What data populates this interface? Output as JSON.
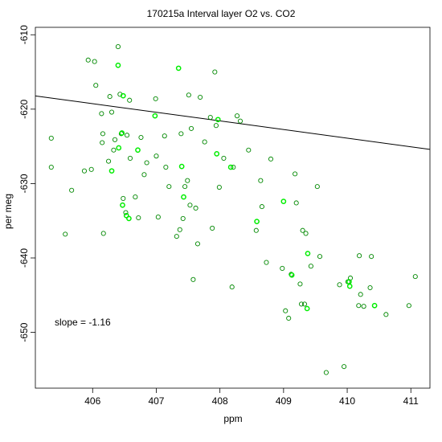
{
  "chart_data": {
    "type": "scatter",
    "title": "170215a   Interval layer O2 vs. CO2",
    "xlabel": "ppm",
    "ylabel": "per meg",
    "xlim": [
      405.1,
      411.3
    ],
    "ylim": [
      -657.5,
      -609.0
    ],
    "xticks": [
      406,
      407,
      408,
      409,
      410,
      411
    ],
    "yticks": [
      -650,
      -640,
      -630,
      -620,
      -610
    ],
    "grid": false,
    "annotation": "slope =  -1.16",
    "point_color_dark": "#008800",
    "point_color_bright": "#00ee00",
    "fit_line": {
      "slope": -1.16,
      "intercept": -148.3,
      "color": "#000000"
    },
    "series": [
      {
        "x": [
          405.35,
          405.35,
          405.57,
          405.67,
          405.87,
          405.93,
          405.98,
          406.03,
          406.05,
          406.14,
          406.15,
          406.16,
          406.17,
          406.25,
          406.27,
          406.3,
          406.33,
          406.35,
          406.4,
          406.43,
          406.45,
          406.48,
          406.52,
          406.54,
          406.58,
          406.59,
          406.67,
          406.72,
          406.76,
          406.81,
          406.85,
          406.99,
          407.0,
          407.03,
          407.13,
          407.15,
          407.2,
          407.32,
          407.35,
          407.37,
          407.39,
          407.42,
          407.45,
          407.49,
          407.51,
          407.53,
          407.55,
          407.58,
          407.62,
          407.65,
          407.69,
          407.76,
          407.85,
          407.88,
          407.92,
          407.94,
          407.99,
          408.06,
          408.19,
          408.21,
          408.27,
          408.32,
          408.45,
          408.57,
          408.64,
          408.66,
          408.73,
          408.8,
          408.98,
          409.03,
          409.08,
          409.12,
          409.18,
          409.2,
          409.26,
          409.28,
          409.3,
          409.33,
          409.35,
          409.43,
          409.53,
          409.57,
          409.67,
          409.88,
          409.95,
          410.01,
          410.05,
          410.18,
          410.19,
          410.21,
          410.26,
          410.36,
          410.38,
          410.61,
          410.97,
          411.07,
          406.4,
          406.3,
          406.48,
          406.46,
          406.47,
          406.41,
          406.71,
          406.53,
          406.57,
          406.98,
          407.43,
          407.4,
          407.97,
          407.95,
          408.17,
          408.58,
          409.0,
          409.13,
          409.37,
          409.38,
          410.04,
          410.03,
          410.43
        ],
        "y": [
          -623.9,
          -627.8,
          -636.8,
          -630.9,
          -628.3,
          -613.4,
          -628.1,
          -613.6,
          -616.8,
          -620.6,
          -624.5,
          -623.3,
          -636.7,
          -627.0,
          -618.3,
          -620.4,
          -625.5,
          -624.1,
          -611.6,
          -618.0,
          -623.3,
          -632.0,
          -633.9,
          -623.5,
          -618.8,
          -626.6,
          -631.8,
          -634.6,
          -623.8,
          -628.8,
          -627.2,
          -618.6,
          -626.3,
          -634.5,
          -623.6,
          -627.8,
          -630.4,
          -637.1,
          -614.5,
          -636.2,
          -623.3,
          -634.7,
          -630.4,
          -629.6,
          -618.1,
          -632.9,
          -622.6,
          -642.9,
          -633.3,
          -638.1,
          -618.4,
          -624.4,
          -621.1,
          -636.0,
          -615.0,
          -622.2,
          -630.5,
          -626.6,
          -643.9,
          -627.8,
          -620.9,
          -621.6,
          -625.5,
          -636.3,
          -629.6,
          -633.1,
          -640.6,
          -626.7,
          -641.4,
          -647.1,
          -648.1,
          -642.2,
          -628.7,
          -632.6,
          -643.5,
          -646.2,
          -636.3,
          -646.2,
          -636.7,
          -641.1,
          -630.4,
          -639.8,
          -655.4,
          -643.6,
          -654.6,
          -643.2,
          -642.7,
          -646.4,
          -639.7,
          -644.9,
          -646.5,
          -644.0,
          -639.8,
          -647.6,
          -646.4,
          -642.5,
          -614.1,
          -628.3,
          -618.2,
          -623.2,
          -632.9,
          -625.2,
          -625.5,
          -634.3,
          -634.7,
          -620.9,
          -631.8,
          -627.7,
          -621.4,
          -626.0,
          -627.8,
          -635.1,
          -632.4,
          -642.3,
          -646.8,
          -639.4,
          -643.8,
          -643.2,
          -646.4
        ],
        "bright": [
          0,
          0,
          0,
          0,
          0,
          0,
          0,
          0,
          0,
          0,
          0,
          0,
          0,
          0,
          0,
          0,
          0,
          0,
          0,
          0,
          0,
          0,
          0,
          0,
          0,
          0,
          0,
          0,
          0,
          0,
          0,
          0,
          0,
          0,
          0,
          0,
          0,
          0,
          1,
          0,
          0,
          0,
          0,
          0,
          0,
          0,
          0,
          0,
          0,
          0,
          0,
          0,
          0,
          0,
          0,
          0,
          0,
          0,
          0,
          0,
          0,
          0,
          0,
          0,
          0,
          0,
          0,
          0,
          0,
          0,
          0,
          0,
          0,
          0,
          0,
          0,
          0,
          0,
          0,
          0,
          0,
          0,
          0,
          0,
          0,
          0,
          0,
          0,
          0,
          0,
          0,
          0,
          0,
          0,
          0,
          0,
          1,
          1,
          1,
          1,
          1,
          1,
          1,
          1,
          1,
          1,
          1,
          1,
          1,
          1,
          1,
          1,
          1,
          1,
          1,
          1,
          1,
          1,
          1
        ]
      }
    ]
  }
}
